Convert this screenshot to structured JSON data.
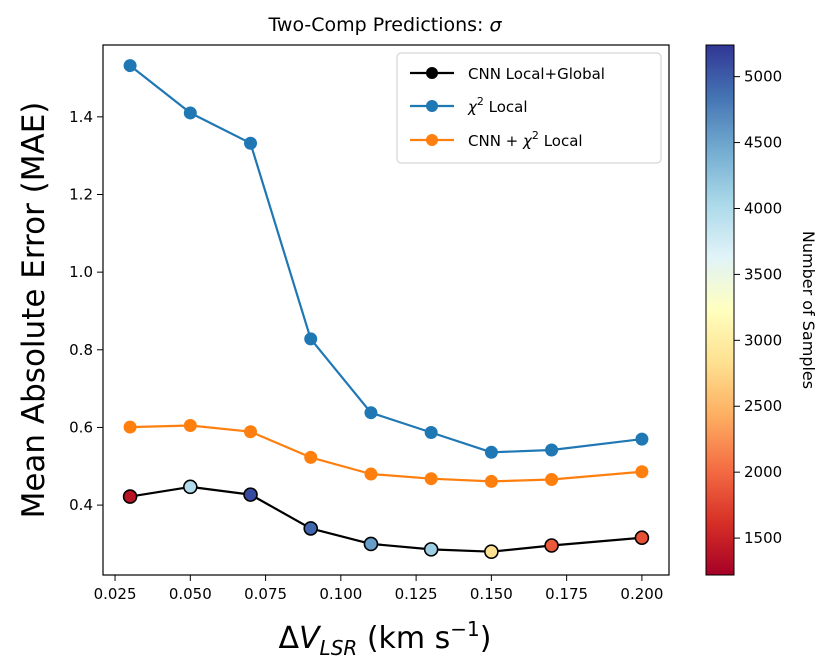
{
  "chart_data": {
    "type": "line",
    "title_prefix": "Two-Comp Predictions: ",
    "title_symbol": "σ",
    "xlabel": {
      "delta": "Δ",
      "v": "V",
      "sub": "LSR",
      "unit_prefix": " (km s",
      "unit_exp": "−1",
      "unit_suffix": ")"
    },
    "ylabel": "Mean Absolute Error (MAE)",
    "xlim": [
      0.021,
      0.209
    ],
    "ylim": [
      0.22,
      1.585
    ],
    "xticks": [
      0.025,
      0.05,
      0.075,
      0.1,
      0.125,
      0.15,
      0.175,
      0.2
    ],
    "xtick_labels": [
      "0.025",
      "0.050",
      "0.075",
      "0.100",
      "0.125",
      "0.150",
      "0.175",
      "0.200"
    ],
    "yticks": [
      0.4,
      0.6,
      0.8,
      1.0,
      1.2,
      1.4
    ],
    "ytick_labels": [
      "0.4",
      "0.6",
      "0.8",
      "1.0",
      "1.2",
      "1.4"
    ],
    "x": [
      0.03,
      0.05,
      0.07,
      0.09,
      0.11,
      0.13,
      0.15,
      0.17,
      0.2
    ],
    "series": [
      {
        "name": "χ² Local",
        "legend": {
          "base": "χ",
          "sup": "2",
          "suffix": " Local"
        },
        "color": "#1f77b4",
        "values": [
          1.532,
          1.41,
          1.332,
          0.828,
          0.638,
          0.587,
          0.536,
          0.542,
          0.57
        ]
      },
      {
        "name": "CNN + χ² Local",
        "legend": {
          "prefix": "CNN + ",
          "base": "χ",
          "sup": "2",
          "suffix": " Local"
        },
        "color": "#ff7f0e",
        "values": [
          0.601,
          0.605,
          0.589,
          0.523,
          0.48,
          0.468,
          0.461,
          0.466,
          0.486
        ]
      },
      {
        "name": "CNN Local+Global",
        "legend": {
          "text": "CNN Local+Global"
        },
        "color": "#000000",
        "values": [
          0.422,
          0.447,
          0.427,
          0.34,
          0.3,
          0.286,
          0.28,
          0.296,
          0.316
        ],
        "marker_samples": [
          1380,
          3980,
          5120,
          4930,
          4550,
          4130,
          2840,
          1890,
          1840
        ]
      }
    ],
    "legend_order": [
      "CNN Local+Global",
      "χ² Local",
      "CNN + χ² Local"
    ],
    "legend_position": "top-right",
    "colorbar": {
      "label": "Number of Samples",
      "colormap": "RdYlBu",
      "range": [
        1220,
        5240
      ],
      "ticks": [
        1500,
        2000,
        2500,
        3000,
        3500,
        4000,
        4500,
        5000
      ],
      "tick_labels": [
        "1500",
        "2000",
        "2500",
        "3000",
        "3500",
        "4000",
        "4500",
        "5000"
      ]
    }
  }
}
